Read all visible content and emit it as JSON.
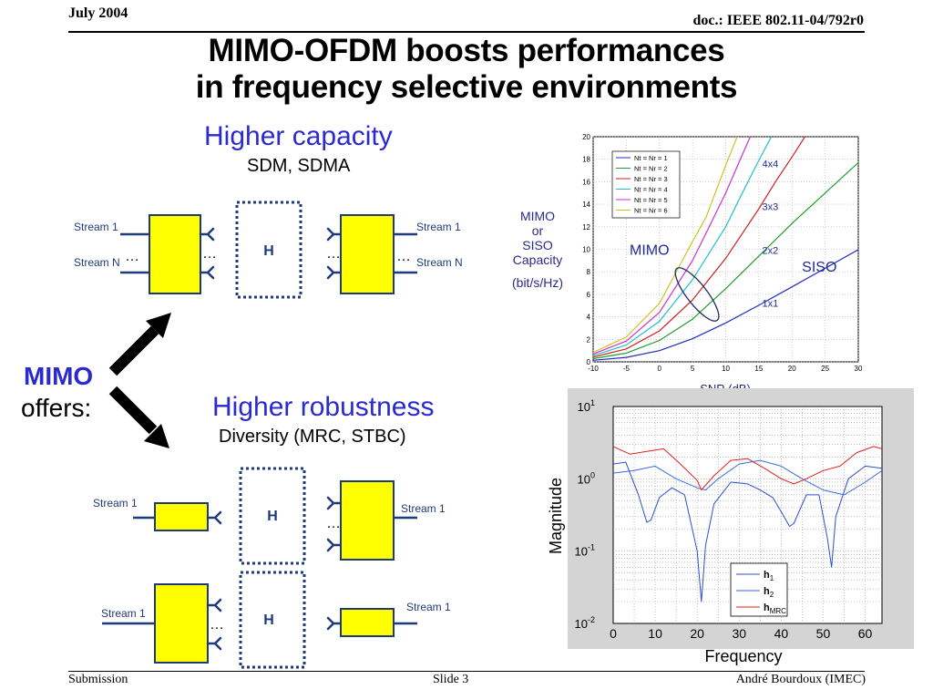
{
  "header": {
    "date": "July 2004",
    "doc": "doc.: IEEE 802.11-04/792r0"
  },
  "title": {
    "line1": "MIMO-OFDM boosts performances",
    "line2": "in frequency selective environments"
  },
  "capacity": {
    "heading": "Higher capacity",
    "sub": "SDM, SDMA"
  },
  "robustness": {
    "heading": "Higher robustness",
    "sub": "Diversity (MRC, STBC)"
  },
  "mimo_offers": {
    "mimo": "MIMO",
    "offers": "offers:"
  },
  "diagram": {
    "stream1": "Stream 1",
    "streamN": "Stream N",
    "channel": "H",
    "dots": "…"
  },
  "capacity_axis_desc": {
    "l1": "MIMO",
    "l2": "or",
    "l3": "SISO",
    "l4": "Capacity",
    "units": "(bit/s/Hz)"
  },
  "footer": {
    "left": "Submission",
    "center": "Slide 3",
    "right": "André Bourdoux (IMEC)"
  },
  "colors": {
    "accent_blue": "#2a2ad0",
    "block_yellow": "#ffff00",
    "channel_border": "#1f3a7a"
  },
  "chart_data": [
    {
      "type": "line",
      "xlabel": "SNR (dB)",
      "ylabel": "",
      "xlim": [
        -10,
        30
      ],
      "ylim": [
        0,
        20
      ],
      "xticks": [
        -10,
        -5,
        0,
        5,
        10,
        15,
        20,
        25,
        30
      ],
      "yticks": [
        0,
        2,
        4,
        6,
        8,
        10,
        12,
        14,
        16,
        18,
        20
      ],
      "grid": true,
      "legend": "top-left",
      "annotations": [
        {
          "text": "4x4",
          "x": 15.5,
          "y": 17.3
        },
        {
          "text": "3x3",
          "x": 15.5,
          "y": 13.5
        },
        {
          "text": "2x2",
          "x": 15.5,
          "y": 9.6
        },
        {
          "text": "1x1",
          "x": 15.5,
          "y": 4.9
        },
        {
          "text": "MIMO",
          "x": -4.5,
          "y": 9.5,
          "big": true
        },
        {
          "text": "SISO",
          "x": 21.5,
          "y": 8.0,
          "big": true
        }
      ],
      "series": [
        {
          "name": "Nt = Nr = 1",
          "color": "#1f2fbf",
          "x": [
            -10,
            -5,
            0,
            5,
            10,
            15,
            20,
            25,
            30
          ],
          "y": [
            0.14,
            0.4,
            1.0,
            2.06,
            3.46,
            5.03,
            6.66,
            8.31,
            9.97
          ]
        },
        {
          "name": "Nt = Nr = 2",
          "color": "#1f9f2f",
          "x": [
            -10,
            -5,
            0,
            5,
            10,
            15,
            20,
            25,
            30
          ],
          "y": [
            0.28,
            0.78,
            1.9,
            3.8,
            6.5,
            9.4,
            12.3,
            15.0,
            17.7
          ]
        },
        {
          "name": "Nt = Nr = 3",
          "color": "#d02020",
          "x": [
            -10,
            -5,
            0,
            5,
            10,
            15,
            17.5,
            20,
            22.5
          ],
          "y": [
            0.42,
            1.15,
            2.75,
            5.5,
            9.2,
            13.6,
            16.0,
            18.2,
            20.5
          ]
        },
        {
          "name": "Nt = Nr = 4",
          "color": "#20c0d0",
          "x": [
            -10,
            -5,
            0,
            5,
            10,
            12.5,
            15,
            17.5
          ],
          "y": [
            0.56,
            1.5,
            3.6,
            7.3,
            12.0,
            15.0,
            17.9,
            20.7
          ]
        },
        {
          "name": "Nt = Nr = 5",
          "color": "#d030d0",
          "x": [
            -10,
            -5,
            0,
            5,
            8,
            10,
            12.5,
            14
          ],
          "y": [
            0.7,
            1.85,
            4.4,
            9.0,
            12.6,
            15.0,
            18.4,
            20.4
          ]
        },
        {
          "name": "Nt = Nr = 6",
          "color": "#d0c020",
          "x": [
            -10,
            -5,
            0,
            5,
            7,
            9,
            10.5,
            12
          ],
          "y": [
            0.84,
            2.2,
            5.2,
            10.7,
            12.8,
            15.9,
            18.2,
            20.4
          ]
        }
      ]
    },
    {
      "type": "line",
      "xlabel": "Frequency",
      "ylabel": "Magnitude",
      "xlim": [
        0,
        64
      ],
      "ylim": [
        0.01,
        10
      ],
      "yscale": "log",
      "xticks": [
        0,
        10,
        20,
        30,
        40,
        50,
        60
      ],
      "yticks": [
        {
          "base": "10",
          "exp": "1",
          "value": 10
        },
        {
          "base": "10",
          "exp": "0",
          "value": 1
        },
        {
          "base": "10",
          "exp": "-1",
          "value": 0.1
        },
        {
          "base": "10",
          "exp": "-2",
          "value": 0.01
        }
      ],
      "grid": true,
      "legend": "bottom-right",
      "series": [
        {
          "name": "h",
          "sub": "1",
          "color": "#2a50d0",
          "x": [
            0,
            3,
            6,
            8,
            9,
            11,
            14,
            17,
            20,
            21,
            22,
            24,
            28,
            32,
            35,
            38,
            40,
            42,
            43,
            46,
            49,
            51,
            52,
            53,
            56,
            60,
            64
          ],
          "y": [
            1.6,
            1.7,
            0.6,
            0.25,
            0.27,
            0.55,
            0.75,
            0.6,
            0.1,
            0.02,
            0.12,
            0.45,
            0.9,
            0.85,
            0.7,
            0.55,
            0.35,
            0.22,
            0.24,
            0.6,
            0.6,
            0.15,
            0.06,
            0.3,
            1.0,
            1.5,
            1.4
          ]
        },
        {
          "name": "h",
          "sub": "2",
          "color": "#3a6ae0",
          "x": [
            0,
            5,
            10,
            15,
            20,
            22,
            25,
            30,
            35,
            40,
            45,
            50,
            55,
            60,
            64
          ],
          "y": [
            1.2,
            1.3,
            1.5,
            1.0,
            0.75,
            0.7,
            1.0,
            1.6,
            1.8,
            1.5,
            1.0,
            0.7,
            0.6,
            0.9,
            1.3
          ]
        },
        {
          "name": "h",
          "sub": "MRC",
          "color": "#e02020",
          "x": [
            0,
            4,
            8,
            12,
            16,
            20,
            21,
            24,
            28,
            32,
            36,
            40,
            43,
            46,
            50,
            54,
            58,
            62,
            64
          ],
          "y": [
            2.8,
            2.2,
            2.4,
            2.6,
            1.6,
            0.95,
            0.7,
            1.1,
            1.8,
            1.9,
            1.4,
            1.0,
            0.85,
            1.0,
            1.3,
            1.5,
            2.3,
            2.8,
            2.6
          ]
        }
      ]
    }
  ]
}
